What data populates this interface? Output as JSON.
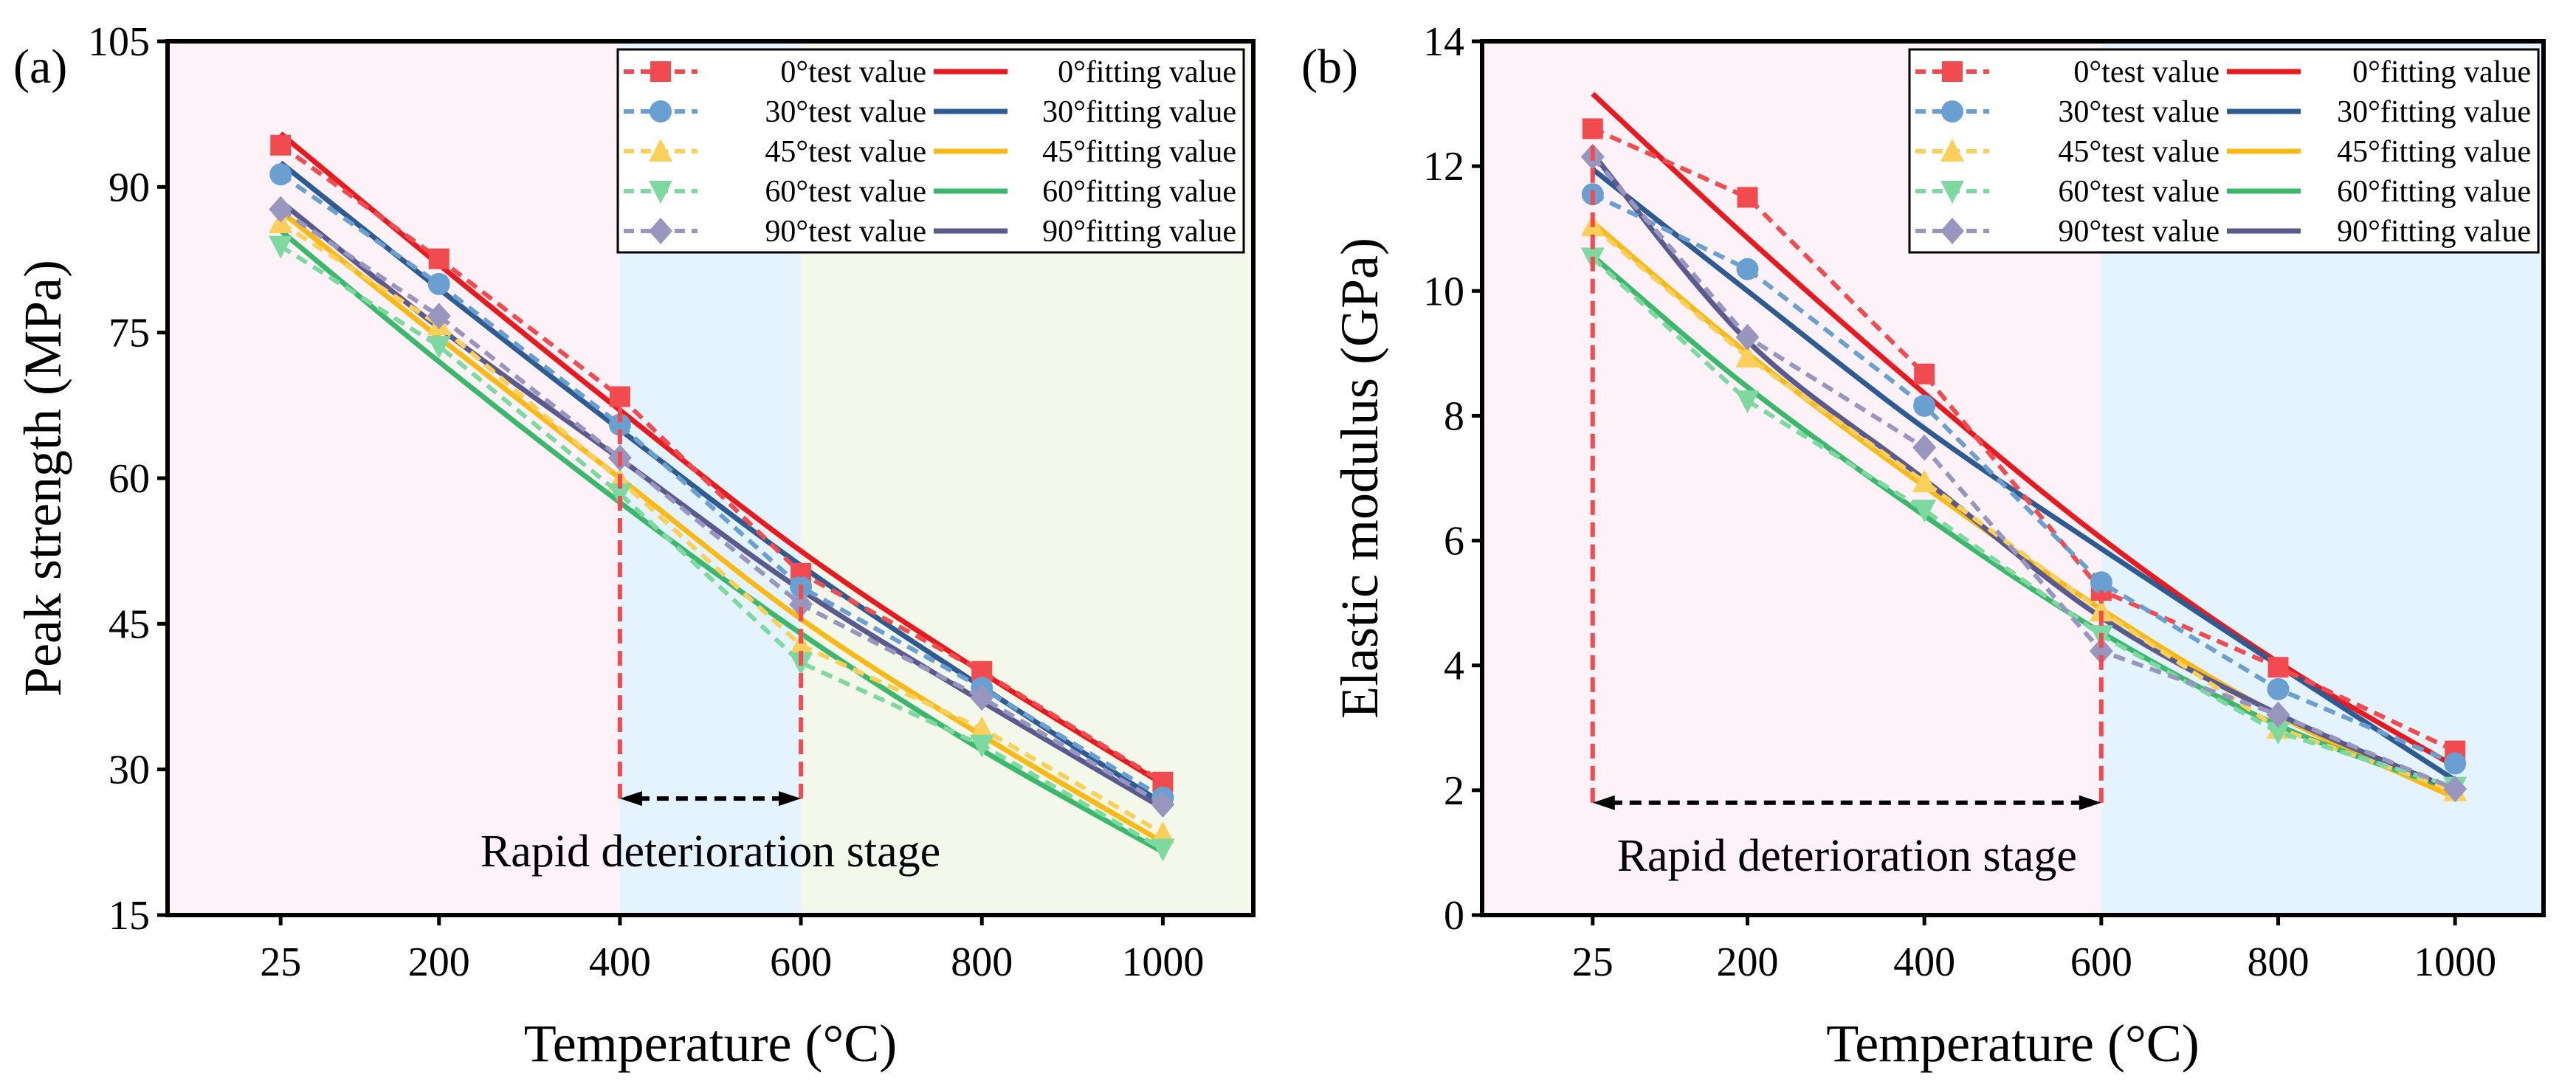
{
  "chart_data": [
    {
      "type": "line",
      "panel_label": "(a)",
      "xlabel": "Temperature (°C)",
      "ylabel": "Peak strength (MPa)",
      "x": [
        25,
        200,
        400,
        600,
        800,
        1000
      ],
      "xticks": [
        25,
        200,
        400,
        600,
        800,
        1000
      ],
      "xlim": [
        -100,
        1100
      ],
      "yticks": [
        15,
        30,
        45,
        60,
        75,
        90,
        105
      ],
      "ylim": [
        15,
        105
      ],
      "legend_position": "top-right",
      "regions": [
        {
          "from": -100,
          "to": 400,
          "color": "#fdf2f8"
        },
        {
          "from": 400,
          "to": 600,
          "color": "#e4f3fd"
        },
        {
          "from": 600,
          "to": 1100,
          "color": "#f3f8ea"
        }
      ],
      "annotation": {
        "text": "Rapid deterioration stage",
        "from": 400,
        "to": 600,
        "arrow_y": 27,
        "vline_tops": [
          68.4,
          50.2
        ]
      },
      "series": [
        {
          "name": "0°test value",
          "kind": "test",
          "marker": "square",
          "color": "#f24b4f",
          "values": [
            94.3,
            82.6,
            68.4,
            50.2,
            40.1,
            28.7
          ]
        },
        {
          "name": "0°fitting value",
          "kind": "fit",
          "color": "#e8191f",
          "values": [
            95.5,
            82.0,
            67.0,
            52.5,
            40.0,
            28.5
          ]
        },
        {
          "name": "30°test value",
          "kind": "test",
          "marker": "circle",
          "color": "#6a9fd2",
          "values": [
            91.3,
            80.0,
            65.5,
            48.8,
            38.4,
            27.1
          ]
        },
        {
          "name": "30°fitting value",
          "kind": "fit",
          "color": "#2d5b92",
          "values": [
            92.5,
            79.5,
            65.0,
            51.0,
            38.5,
            26.5
          ]
        },
        {
          "name": "45°test value",
          "kind": "test",
          "marker": "triangle-up",
          "color": "#fbd05a",
          "values": [
            86.3,
            75.8,
            59.8,
            42.8,
            34.2,
            23.4
          ]
        },
        {
          "name": "45°fitting value",
          "kind": "fit",
          "color": "#f9b917",
          "values": [
            87.5,
            74.5,
            60.0,
            45.5,
            33.5,
            22.5
          ]
        },
        {
          "name": "60°test value",
          "kind": "test",
          "marker": "triangle-down",
          "color": "#7ed9a0",
          "values": [
            83.9,
            73.6,
            58.4,
            41.0,
            32.5,
            21.8
          ]
        },
        {
          "name": "60°fitting value",
          "kind": "fit",
          "color": "#3bb86c",
          "values": [
            85.5,
            72.0,
            57.5,
            44.0,
            32.0,
            21.5
          ]
        },
        {
          "name": "90°test value",
          "kind": "test",
          "marker": "diamond",
          "color": "#9896bf",
          "values": [
            87.7,
            76.7,
            62.1,
            47.0,
            37.4,
            26.4
          ]
        },
        {
          "name": "90°fitting value",
          "kind": "fit",
          "color": "#5a5a8e",
          "values": [
            88.5,
            75.5,
            62.0,
            48.5,
            37.0,
            26.0
          ]
        }
      ]
    },
    {
      "type": "line",
      "panel_label": "(b)",
      "xlabel": "Temperature (°C)",
      "ylabel": "Elastic modulus (GPa)",
      "x": [
        25,
        200,
        400,
        600,
        800,
        1000
      ],
      "xticks": [
        25,
        200,
        400,
        600,
        800,
        1000
      ],
      "xlim": [
        -100,
        1100
      ],
      "yticks": [
        0,
        2,
        4,
        6,
        8,
        10,
        12,
        14
      ],
      "ylim": [
        0,
        14
      ],
      "legend_position": "top-right",
      "regions": [
        {
          "from": -100,
          "to": 600,
          "color": "#fdf2f8"
        },
        {
          "from": 600,
          "to": 1100,
          "color": "#e4f3fd"
        }
      ],
      "annotation": {
        "text": "Rapid deterioration stage",
        "from": 25,
        "to": 600,
        "arrow_y": 1.8,
        "vline_tops": [
          12.6,
          5.2
        ]
      },
      "series": [
        {
          "name": "0°test value",
          "kind": "test",
          "marker": "square",
          "color": "#f24b4f",
          "values": [
            12.6,
            11.5,
            8.67,
            5.2,
            3.97,
            2.63
          ]
        },
        {
          "name": "0°fitting value",
          "kind": "fit",
          "color": "#e8191f",
          "values": [
            13.16,
            10.85,
            8.36,
            6.04,
            4.05,
            2.38
          ]
        },
        {
          "name": "30°test value",
          "kind": "test",
          "marker": "circle",
          "color": "#6a9fd2",
          "values": [
            11.55,
            10.35,
            8.16,
            5.33,
            3.62,
            2.43
          ]
        },
        {
          "name": "30°fitting value",
          "kind": "fit",
          "color": "#2d5b92",
          "values": [
            11.95,
            10.0,
            7.8,
            5.87,
            4.0,
            2.16
          ]
        },
        {
          "name": "45°test value",
          "kind": "test",
          "marker": "triangle-up",
          "color": "#fbd05a",
          "values": [
            11.04,
            8.94,
            6.94,
            4.87,
            2.99,
            1.99
          ]
        },
        {
          "name": "45°fitting value",
          "kind": "fit",
          "color": "#f9b917",
          "values": [
            11.1,
            9.0,
            6.87,
            4.9,
            3.2,
            1.88
          ]
        },
        {
          "name": "60°test value",
          "kind": "test",
          "marker": "triangle-down",
          "color": "#7ed9a0",
          "values": [
            10.53,
            8.24,
            6.49,
            4.48,
            2.93,
            2.05
          ]
        },
        {
          "name": "60°fitting value",
          "kind": "fit",
          "color": "#3bb86c",
          "values": [
            10.56,
            8.46,
            6.4,
            4.53,
            3.04,
            2.0
          ]
        },
        {
          "name": "90°test value",
          "kind": "test",
          "marker": "diamond",
          "color": "#9896bf",
          "values": [
            12.15,
            9.26,
            7.49,
            4.23,
            3.21,
            2.02
          ]
        },
        {
          "name": "90°fitting value",
          "kind": "fit",
          "color": "#5a5a8e",
          "values": [
            12.2,
            9.2,
            6.98,
            4.77,
            3.22,
            2.0
          ]
        }
      ]
    }
  ]
}
